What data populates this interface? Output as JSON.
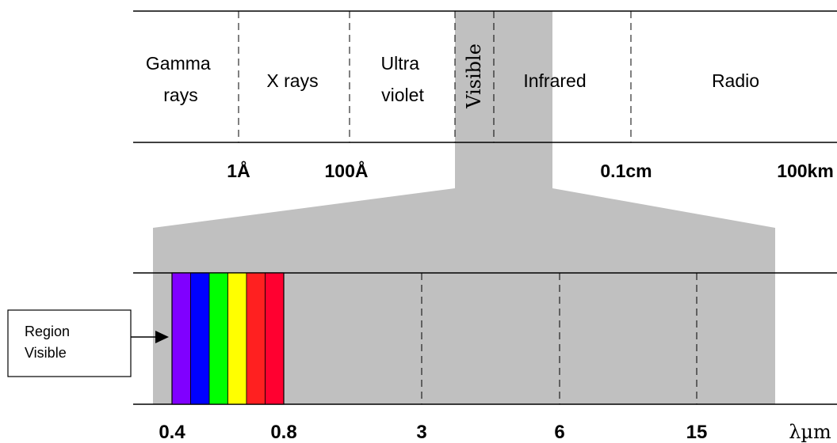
{
  "spectrum": {
    "bands": [
      {
        "id": "gamma",
        "lines": [
          "Gamma",
          "rays"
        ]
      },
      {
        "id": "xrays",
        "lines": [
          "X rays"
        ]
      },
      {
        "id": "ultraviolet",
        "lines": [
          "Ultra",
          "violet"
        ]
      },
      {
        "id": "infrared",
        "lines": [
          "Infrared"
        ]
      },
      {
        "id": "radio",
        "lines": [
          "Radio"
        ]
      }
    ],
    "visible_label": "Visible",
    "wavelength_ticks": [
      "1Å",
      "100Å",
      "0.1cm",
      "100km"
    ]
  },
  "zoom": {
    "ticks": [
      "0.4",
      "0.8",
      "3",
      "6",
      "15"
    ],
    "unit": "λµm",
    "colors": [
      "#8000ff",
      "#0000ff",
      "#00ff00",
      "#ffff00",
      "#ff2020",
      "#ff0030"
    ]
  },
  "callout": {
    "lines": [
      "Region",
      "Visible"
    ]
  },
  "style": {
    "band_shade": "#c0c0c0"
  }
}
